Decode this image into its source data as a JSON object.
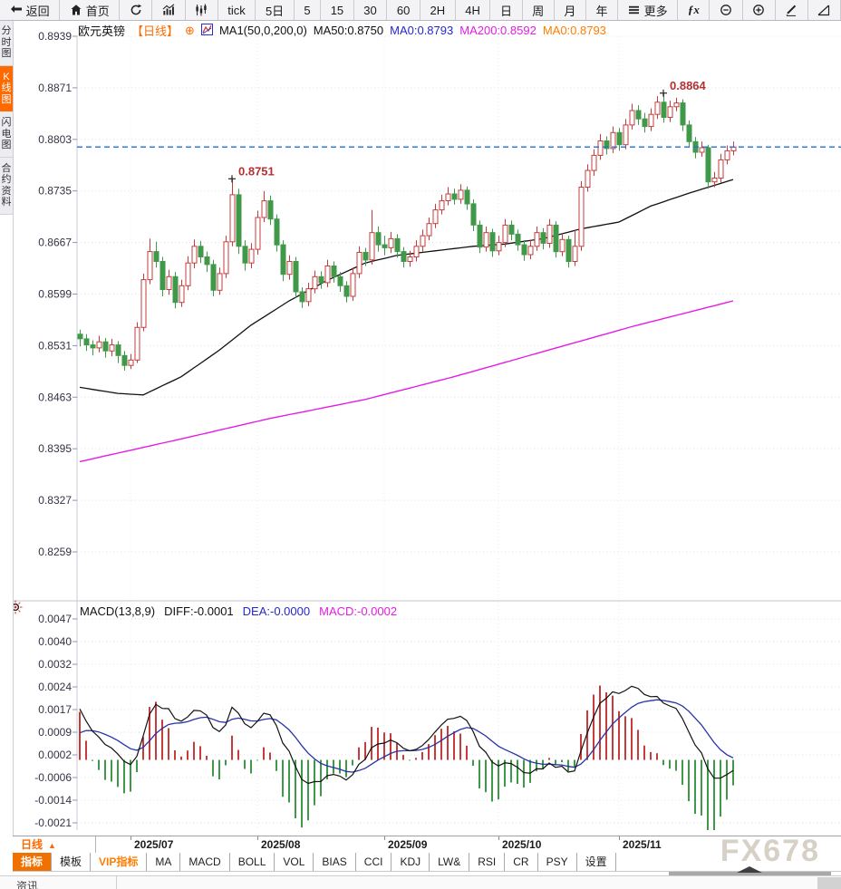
{
  "toolbar": {
    "items": [
      {
        "name": "back-button",
        "icon": "back",
        "label": "返回"
      },
      {
        "name": "home-button",
        "icon": "home",
        "label": "首页"
      },
      {
        "name": "refresh-button",
        "icon": "refresh",
        "label": ""
      },
      {
        "name": "volume-chart-button",
        "icon": "bars",
        "label": ""
      },
      {
        "name": "candle-style-button",
        "icon": "candles",
        "label": ""
      },
      {
        "name": "interval-tick-button",
        "label": "tick"
      },
      {
        "name": "interval-5d-button",
        "label": "5日"
      },
      {
        "name": "interval-5m-button",
        "label": "5"
      },
      {
        "name": "interval-15m-button",
        "label": "15"
      },
      {
        "name": "interval-30m-button",
        "label": "30"
      },
      {
        "name": "interval-60m-button",
        "label": "60"
      },
      {
        "name": "interval-2h-button",
        "label": "2H"
      },
      {
        "name": "interval-4h-button",
        "label": "4H"
      },
      {
        "name": "interval-day-button",
        "label": "日"
      },
      {
        "name": "interval-week-button",
        "label": "周"
      },
      {
        "name": "interval-month-button",
        "label": "月"
      },
      {
        "name": "interval-year-button",
        "label": "年"
      },
      {
        "name": "more-button",
        "icon": "more",
        "label": "更多"
      },
      {
        "name": "fx-indicator-button",
        "label": "ƒx",
        "fx": true
      },
      {
        "name": "zoom-out-button",
        "icon": "zoomout",
        "label": ""
      },
      {
        "name": "zoom-in-button",
        "icon": "zoomin",
        "label": ""
      },
      {
        "name": "draw-pencil-button",
        "icon": "pencil",
        "label": ""
      },
      {
        "name": "trendline-button",
        "icon": "trend",
        "label": ""
      }
    ]
  },
  "sidebar": {
    "tabs": [
      {
        "label": "分时图",
        "active": false
      },
      {
        "label": "K线图",
        "active": true
      },
      {
        "label": "闪电图",
        "active": false
      },
      {
        "label": "合约资料",
        "active": false
      }
    ]
  },
  "chart_header": {
    "symbol": "欧元英镑",
    "period": "【日线】",
    "plus": "⊕",
    "ma_settings": "MA1(50,0,200,0)",
    "ma50": "MA50:0.8750",
    "ma0_blue": "MA0:0.8793",
    "ma200": "MA200:0.8592",
    "ma0_orange": "MA0:0.8793"
  },
  "macd_header": {
    "title": "MACD(13,8,9)",
    "diff": "DIFF:-0.0001",
    "dea": "DEA:-0.0000",
    "macd": "MACD:-0.0002"
  },
  "x_axis": {
    "period_label": "日线",
    "period_arrow": "▲"
  },
  "bottom_tabs": [
    {
      "label": "指标",
      "style": "active"
    },
    {
      "label": "模板",
      "style": ""
    },
    {
      "label": "VIP指标",
      "style": "vip"
    },
    {
      "label": "MA",
      "style": ""
    },
    {
      "label": "MACD",
      "style": ""
    },
    {
      "label": "BOLL",
      "style": ""
    },
    {
      "label": "VOL",
      "style": ""
    },
    {
      "label": "BIAS",
      "style": ""
    },
    {
      "label": "CCI",
      "style": ""
    },
    {
      "label": "KDJ",
      "style": ""
    },
    {
      "label": "LW&",
      "style": ""
    },
    {
      "label": "RSI",
      "style": ""
    },
    {
      "label": "CR",
      "style": ""
    },
    {
      "label": "PSY",
      "style": ""
    },
    {
      "label": "设置",
      "style": ""
    }
  ],
  "status": {
    "label": "资讯"
  },
  "watermark": "FX678",
  "chart_data": {
    "type": "candlestick",
    "symbol": "欧元英镑",
    "timeframe": "日线",
    "price_axis": {
      "max": 0.8939,
      "min": 0.8259
    },
    "y_tick_labels": [
      "0.8939",
      "0.8871",
      "0.8803",
      "0.8735",
      "0.8667",
      "0.8599",
      "0.8531",
      "0.8463",
      "0.8395",
      "0.8327",
      "0.8259"
    ],
    "current_price": 0.8793,
    "months": [
      {
        "label": "2025/07",
        "index": 8
      },
      {
        "label": "2025/08",
        "index": 28
      },
      {
        "label": "2025/09",
        "index": 48
      },
      {
        "label": "2025/10",
        "index": 66
      },
      {
        "label": "2025/11",
        "index": 85
      }
    ],
    "annotations": [
      {
        "label": "0.8751",
        "index": 24,
        "price": 0.8751
      },
      {
        "label": "0.8864",
        "index": 92,
        "price": 0.8864
      }
    ],
    "candles": [
      [
        0.8546,
        0.8552,
        0.853,
        0.854
      ],
      [
        0.854,
        0.8546,
        0.8524,
        0.8532
      ],
      [
        0.8532,
        0.8538,
        0.8518,
        0.8528
      ],
      [
        0.8528,
        0.8544,
        0.8522,
        0.8536
      ],
      [
        0.8536,
        0.8541,
        0.8515,
        0.8524
      ],
      [
        0.8524,
        0.854,
        0.8517,
        0.8532
      ],
      [
        0.8532,
        0.8537,
        0.8508,
        0.8518
      ],
      [
        0.8518,
        0.8524,
        0.8498,
        0.8505
      ],
      [
        0.8505,
        0.852,
        0.85,
        0.8512
      ],
      [
        0.8512,
        0.8562,
        0.8508,
        0.8555
      ],
      [
        0.8555,
        0.8626,
        0.855,
        0.8618
      ],
      [
        0.8618,
        0.8672,
        0.8612,
        0.8655
      ],
      [
        0.8655,
        0.8668,
        0.8634,
        0.8642
      ],
      [
        0.8642,
        0.8648,
        0.8596,
        0.8605
      ],
      [
        0.8605,
        0.8631,
        0.8598,
        0.8622
      ],
      [
        0.8622,
        0.8628,
        0.858,
        0.8588
      ],
      [
        0.8588,
        0.8618,
        0.8582,
        0.861
      ],
      [
        0.861,
        0.8649,
        0.8604,
        0.864
      ],
      [
        0.864,
        0.8671,
        0.8633,
        0.8662
      ],
      [
        0.8662,
        0.8669,
        0.864,
        0.8648
      ],
      [
        0.8648,
        0.8655,
        0.8628,
        0.8638
      ],
      [
        0.8638,
        0.8644,
        0.8596,
        0.8604
      ],
      [
        0.8604,
        0.8634,
        0.8598,
        0.8626
      ],
      [
        0.8626,
        0.8676,
        0.862,
        0.8668
      ],
      [
        0.8668,
        0.8751,
        0.8662,
        0.873
      ],
      [
        0.873,
        0.8738,
        0.8652,
        0.8662
      ],
      [
        0.8662,
        0.867,
        0.863,
        0.864
      ],
      [
        0.864,
        0.8666,
        0.8633,
        0.8658
      ],
      [
        0.8658,
        0.8709,
        0.8651,
        0.87
      ],
      [
        0.87,
        0.8735,
        0.8694,
        0.8722
      ],
      [
        0.8722,
        0.8729,
        0.869,
        0.8698
      ],
      [
        0.8698,
        0.8704,
        0.8655,
        0.8664
      ],
      [
        0.8664,
        0.867,
        0.8616,
        0.8625
      ],
      [
        0.8625,
        0.865,
        0.8618,
        0.8642
      ],
      [
        0.8642,
        0.8648,
        0.8594,
        0.8602
      ],
      [
        0.8602,
        0.8608,
        0.8581,
        0.8589
      ],
      [
        0.8589,
        0.8614,
        0.8583,
        0.8606
      ],
      [
        0.8606,
        0.863,
        0.86,
        0.8622
      ],
      [
        0.8622,
        0.8629,
        0.8606,
        0.8614
      ],
      [
        0.8614,
        0.8644,
        0.8608,
        0.8636
      ],
      [
        0.8636,
        0.8642,
        0.8614,
        0.8622
      ],
      [
        0.8622,
        0.8628,
        0.8602,
        0.861
      ],
      [
        0.861,
        0.8616,
        0.8588,
        0.8596
      ],
      [
        0.8596,
        0.8634,
        0.859,
        0.8626
      ],
      [
        0.8626,
        0.8662,
        0.862,
        0.8654
      ],
      [
        0.8654,
        0.866,
        0.8636,
        0.8644
      ],
      [
        0.8644,
        0.871,
        0.8638,
        0.868
      ],
      [
        0.868,
        0.8688,
        0.8655,
        0.8664
      ],
      [
        0.8664,
        0.8676,
        0.865,
        0.866
      ],
      [
        0.866,
        0.8681,
        0.8653,
        0.8672
      ],
      [
        0.8672,
        0.8678,
        0.8647,
        0.8655
      ],
      [
        0.8655,
        0.8661,
        0.8634,
        0.8642
      ],
      [
        0.8642,
        0.8656,
        0.8635,
        0.8648
      ],
      [
        0.8648,
        0.867,
        0.8642,
        0.8662
      ],
      [
        0.8662,
        0.8684,
        0.8655,
        0.8676
      ],
      [
        0.8676,
        0.87,
        0.867,
        0.8692
      ],
      [
        0.8692,
        0.8718,
        0.8686,
        0.871
      ],
      [
        0.871,
        0.873,
        0.8704,
        0.8722
      ],
      [
        0.8722,
        0.874,
        0.8716,
        0.8731
      ],
      [
        0.8731,
        0.8738,
        0.8717,
        0.8724
      ],
      [
        0.8724,
        0.8744,
        0.8718,
        0.8736
      ],
      [
        0.8736,
        0.8741,
        0.871,
        0.8718
      ],
      [
        0.8718,
        0.8724,
        0.8682,
        0.869
      ],
      [
        0.869,
        0.8696,
        0.8653,
        0.8661
      ],
      [
        0.8661,
        0.8688,
        0.8655,
        0.868
      ],
      [
        0.868,
        0.8685,
        0.8648,
        0.8656
      ],
      [
        0.8656,
        0.8676,
        0.865,
        0.8667
      ],
      [
        0.8667,
        0.8698,
        0.8661,
        0.869
      ],
      [
        0.869,
        0.8696,
        0.867,
        0.8678
      ],
      [
        0.8678,
        0.8684,
        0.8656,
        0.8664
      ],
      [
        0.8664,
        0.867,
        0.8643,
        0.8651
      ],
      [
        0.8651,
        0.867,
        0.8645,
        0.8662
      ],
      [
        0.8662,
        0.8688,
        0.8656,
        0.868
      ],
      [
        0.868,
        0.8686,
        0.8658,
        0.8666
      ],
      [
        0.8666,
        0.8698,
        0.866,
        0.869
      ],
      [
        0.869,
        0.8695,
        0.8647,
        0.8655
      ],
      [
        0.8655,
        0.8679,
        0.8649,
        0.8671
      ],
      [
        0.8671,
        0.8676,
        0.8634,
        0.8642
      ],
      [
        0.8642,
        0.8684,
        0.8636,
        0.8662
      ],
      [
        0.8662,
        0.8748,
        0.8656,
        0.874
      ],
      [
        0.874,
        0.877,
        0.8734,
        0.8762
      ],
      [
        0.8762,
        0.879,
        0.8755,
        0.8782
      ],
      [
        0.8782,
        0.881,
        0.8776,
        0.8801
      ],
      [
        0.8801,
        0.8807,
        0.8783,
        0.8791
      ],
      [
        0.8791,
        0.882,
        0.8785,
        0.8812
      ],
      [
        0.8812,
        0.8818,
        0.8788,
        0.8796
      ],
      [
        0.8796,
        0.883,
        0.879,
        0.8822
      ],
      [
        0.8822,
        0.885,
        0.8816,
        0.8841
      ],
      [
        0.8841,
        0.8848,
        0.8822,
        0.883
      ],
      [
        0.883,
        0.8838,
        0.8812,
        0.882
      ],
      [
        0.882,
        0.8844,
        0.8814,
        0.8836
      ],
      [
        0.8836,
        0.886,
        0.883,
        0.8852
      ],
      [
        0.8852,
        0.8864,
        0.8825,
        0.8832
      ],
      [
        0.8832,
        0.8854,
        0.8826,
        0.8846
      ],
      [
        0.8846,
        0.8858,
        0.884,
        0.8851
      ],
      [
        0.8851,
        0.8856,
        0.8814,
        0.8822
      ],
      [
        0.8822,
        0.8828,
        0.8792,
        0.88
      ],
      [
        0.88,
        0.8806,
        0.8778,
        0.8786
      ],
      [
        0.8786,
        0.88,
        0.878,
        0.8792
      ],
      [
        0.8792,
        0.8796,
        0.8738,
        0.8747
      ],
      [
        0.8747,
        0.876,
        0.874,
        0.8752
      ],
      [
        0.8752,
        0.8784,
        0.8746,
        0.8776
      ],
      [
        0.8776,
        0.8795,
        0.877,
        0.8788
      ],
      [
        0.8788,
        0.88,
        0.8782,
        0.8793
      ]
    ],
    "ma50_anchors": [
      [
        0,
        0.8476
      ],
      [
        6,
        0.8468
      ],
      [
        10,
        0.8466
      ],
      [
        16,
        0.849
      ],
      [
        22,
        0.8525
      ],
      [
        27,
        0.8558
      ],
      [
        33,
        0.859
      ],
      [
        39,
        0.8617
      ],
      [
        45,
        0.864
      ],
      [
        50,
        0.865
      ],
      [
        56,
        0.8656
      ],
      [
        62,
        0.8662
      ],
      [
        67,
        0.8665
      ],
      [
        73,
        0.8672
      ],
      [
        79,
        0.8685
      ],
      [
        85,
        0.8694
      ],
      [
        90,
        0.8715
      ],
      [
        96,
        0.8732
      ],
      [
        103,
        0.875
      ]
    ],
    "ma200_anchors": [
      [
        0,
        0.8378
      ],
      [
        16,
        0.8408
      ],
      [
        30,
        0.8435
      ],
      [
        45,
        0.846
      ],
      [
        59,
        0.849
      ],
      [
        73,
        0.8523
      ],
      [
        87,
        0.8556
      ],
      [
        103,
        0.859
      ]
    ],
    "macd": {
      "params": [
        13,
        8,
        9
      ],
      "y_tick_labels": [
        "0.0047",
        "0.0040",
        "0.0032",
        "0.0024",
        "0.0017",
        "0.0009",
        "0.0002",
        "-0.0006",
        "-0.0014",
        "-0.0021"
      ],
      "axis": {
        "max": 0.0047,
        "min": -0.0021
      },
      "last": {
        "diff": -0.0001,
        "dea": 0.0,
        "macd": -0.0002
      }
    },
    "colors": {
      "up": "#c73b3b",
      "down": "#3f9948",
      "ma50": "#111111",
      "ma200": "#e41ce4",
      "diff": "#111111",
      "dea": "#2733a8",
      "current_line": "#1e6fe0",
      "annotation": "#b53030",
      "grid": "#dfdfe8",
      "axis_text": "#333344",
      "accent": "#ff6a00"
    }
  }
}
